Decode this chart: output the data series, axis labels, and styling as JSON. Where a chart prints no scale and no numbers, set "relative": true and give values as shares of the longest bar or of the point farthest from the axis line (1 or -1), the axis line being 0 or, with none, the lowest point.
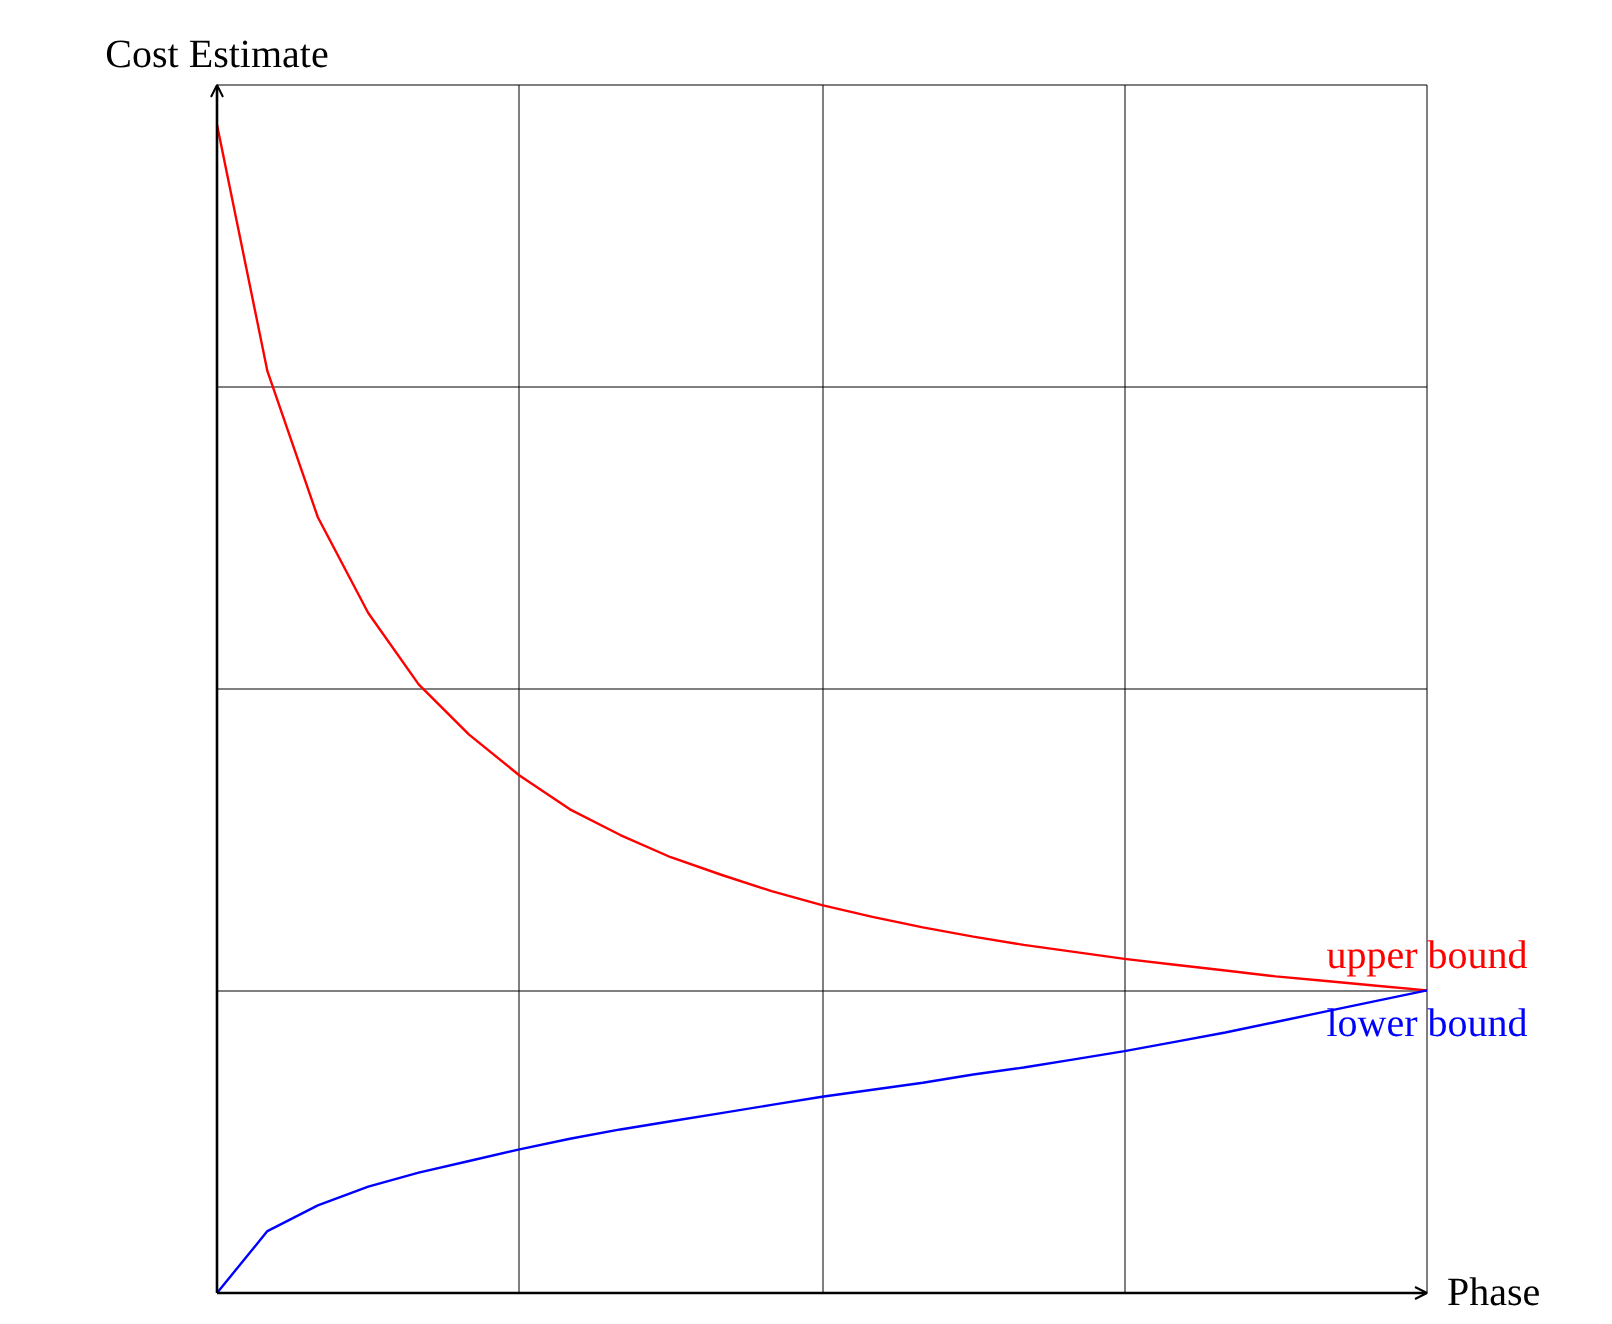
{
  "chart_data": {
    "type": "line",
    "relative": true,
    "xlabel": "Phase",
    "ylabel": "Cost Estimate",
    "grid": true,
    "categories": [
      null,
      null,
      null,
      null,
      null,
      null,
      null,
      null,
      null,
      null,
      null,
      null,
      null,
      null,
      null,
      null,
      null,
      null,
      null,
      null,
      null,
      null,
      null,
      null,
      null
    ],
    "series": [
      {
        "name": "upper bound",
        "color": "#ff0000",
        "values": [
          1,
          0.789,
          0.664,
          0.582,
          0.521,
          0.478,
          0.443,
          0.414,
          0.392,
          0.373,
          0.358,
          0.344,
          0.332,
          0.322,
          0.313,
          0.305,
          0.298,
          0.292,
          0.286,
          0.281,
          0.276,
          0.271,
          0.267,
          0.263,
          0.259
        ]
      },
      {
        "name": "lower bound",
        "color": "#0000ff",
        "values": [
          0,
          0.053,
          0.075,
          0.091,
          0.103,
          0.113,
          0.123,
          0.132,
          0.14,
          0.147,
          0.154,
          0.161,
          0.168,
          0.174,
          0.18,
          0.187,
          0.193,
          0.2,
          0.207,
          0.215,
          0.223,
          0.232,
          0.241,
          0.25,
          0.259
        ]
      }
    ]
  }
}
